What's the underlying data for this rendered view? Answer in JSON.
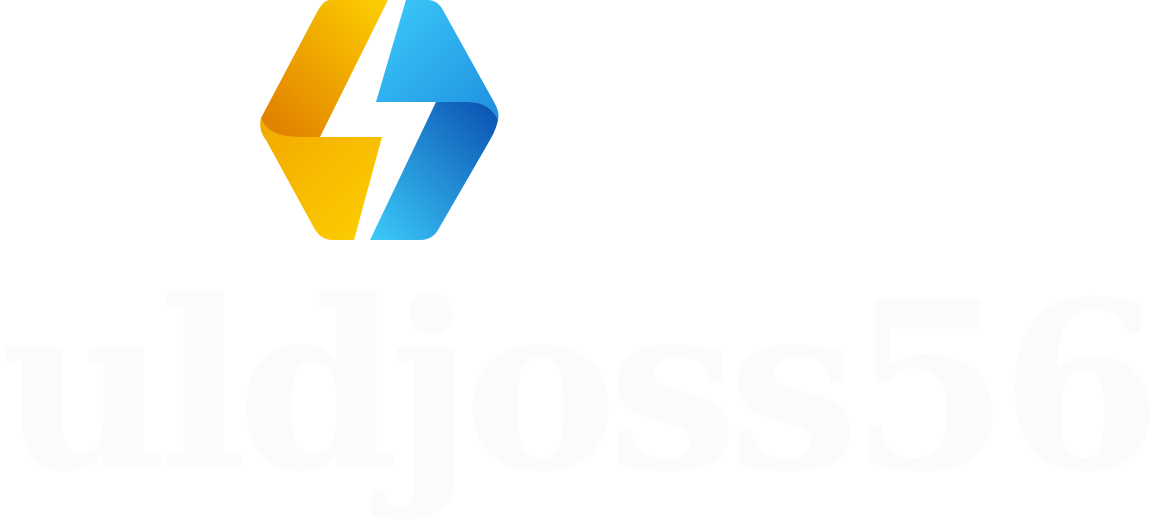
{
  "logo": {
    "icon": "lightning-hexagon-icon",
    "colors": {
      "orange_light": "#FDD000",
      "orange_dark": "#E07A00",
      "blue_light": "#3CCBFA",
      "blue_dark": "#0A4FB0"
    }
  },
  "wordmark": {
    "text": "uldjoss56",
    "color": "#fbfbfb"
  }
}
